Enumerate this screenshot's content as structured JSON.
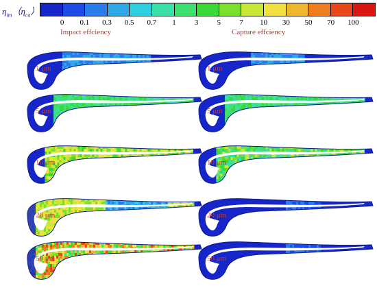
{
  "legend": {
    "symbol_main": "η",
    "symbol_main_sub": "im",
    "symbol_paren_open": "（",
    "symbol_alt": "η",
    "symbol_alt_sub": "ca",
    "symbol_paren_close": "）",
    "scale_colors": [
      "#1626c8",
      "#1e4be6",
      "#2a7cec",
      "#2fa8e8",
      "#2fd0e0",
      "#3ae0a8",
      "#3ee070",
      "#3ad838",
      "#7de030",
      "#c8e838",
      "#f0e040",
      "#f0b830",
      "#ee7e20",
      "#e84818",
      "#d81810"
    ],
    "ticks": [
      "0",
      "0.1",
      "0.3",
      "0.5",
      "0.7",
      "1",
      "3",
      "5",
      "7",
      "10",
      "30",
      "50",
      "70",
      "100"
    ]
  },
  "columns": {
    "left_title": "Impact effciency",
    "right_title": "Capture effciency"
  },
  "rows": [
    {
      "size": "1 μm"
    },
    {
      "size": "5 μm"
    },
    {
      "size": "10 μm"
    },
    {
      "size": "20 μm"
    },
    {
      "size": "50 μm"
    }
  ],
  "colors": {
    "blade_base": "#1528c8",
    "label_red": "#c0392b",
    "title_red": "#c0392b"
  }
}
